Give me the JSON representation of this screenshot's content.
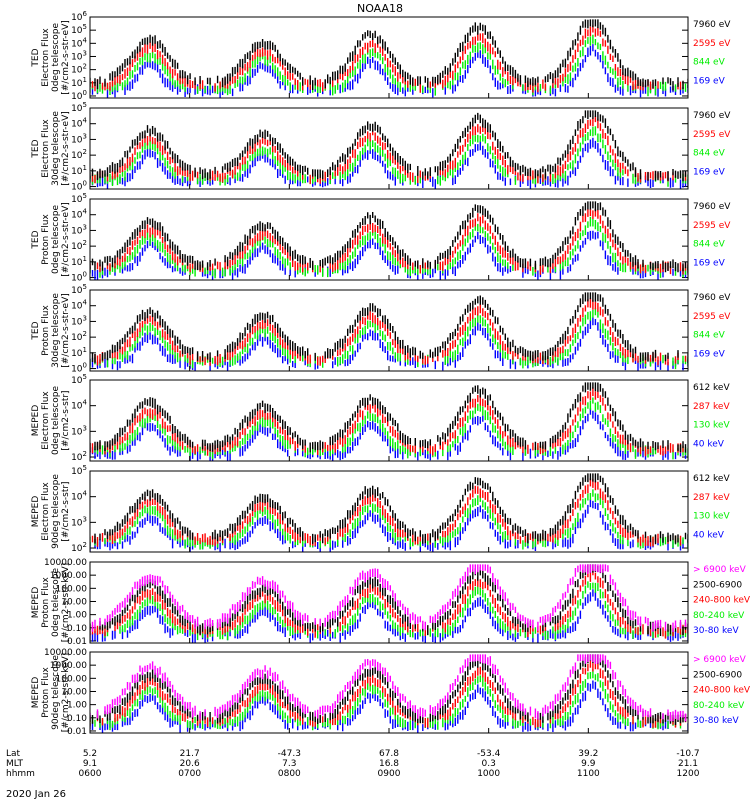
{
  "title": "NOAA18",
  "date": "2020 Jan 26",
  "colors": {
    "blue": "#0000ff",
    "red": "#ff0000",
    "green": "#00ee00",
    "black": "#000000",
    "magenta": "#ff00ff"
  },
  "x_axis": {
    "row_labels": [
      "Lat",
      "MLT",
      "hhmm"
    ],
    "ticks": [
      {
        "lat": "5.2",
        "mlt": "9.1",
        "hhmm": "0600"
      },
      {
        "lat": "21.7",
        "mlt": "20.6",
        "hhmm": "0700"
      },
      {
        "lat": "-47.3",
        "mlt": "7.3",
        "hhmm": "0800"
      },
      {
        "lat": "67.8",
        "mlt": "16.8",
        "hhmm": "0900"
      },
      {
        "lat": "-53.4",
        "mlt": "0.3",
        "hhmm": "1000"
      },
      {
        "lat": "39.2",
        "mlt": "9.9",
        "hhmm": "1100"
      },
      {
        "lat": "-10.7",
        "mlt": "21.1",
        "hhmm": "1200"
      }
    ]
  },
  "chart_data": [
    {
      "type": "line",
      "ylabel": [
        "TED",
        "Electron Flux",
        "0deg telescope",
        "[#/cm2-s-str-eV]"
      ],
      "yscale": "log",
      "ytick_labels": [
        "10^0",
        "10^1",
        "10^2",
        "10^3",
        "10^4",
        "10^5",
        "10^6"
      ],
      "ylim": [
        0.7,
        1000000
      ],
      "series": [
        {
          "name": "7960 eV",
          "color": "#000000"
        },
        {
          "name": "2595 eV",
          "color": "#ff0000"
        },
        {
          "name": "844 eV",
          "color": "#00ee00"
        },
        {
          "name": "169 eV",
          "color": "#0000ff"
        }
      ]
    },
    {
      "type": "line",
      "ylabel": [
        "TED",
        "Electron Flux",
        "30deg telescope",
        "[#/cm2-s-str-eV]"
      ],
      "yscale": "log",
      "ytick_labels": [
        "10^0",
        "10^1",
        "10^2",
        "10^3",
        "10^4",
        "10^5"
      ],
      "ylim": [
        0.7,
        100000
      ],
      "series": [
        {
          "name": "7960 eV",
          "color": "#000000"
        },
        {
          "name": "2595 eV",
          "color": "#ff0000"
        },
        {
          "name": "844 eV",
          "color": "#00ee00"
        },
        {
          "name": "169 eV",
          "color": "#0000ff"
        }
      ]
    },
    {
      "type": "line",
      "ylabel": [
        "TED",
        "Proton Flux",
        "0deg telescope",
        "[#/cm2-s-str-eV]"
      ],
      "yscale": "log",
      "ytick_labels": [
        "10^0",
        "10^1",
        "10^2",
        "10^3",
        "10^4",
        "10^5"
      ],
      "ylim": [
        0.7,
        100000
      ],
      "series": [
        {
          "name": "7960 eV",
          "color": "#000000"
        },
        {
          "name": "2595 eV",
          "color": "#ff0000"
        },
        {
          "name": "844 eV",
          "color": "#00ee00"
        },
        {
          "name": "169 eV",
          "color": "#0000ff"
        }
      ]
    },
    {
      "type": "line",
      "ylabel": [
        "TED",
        "Proton Flux",
        "30deg telescope",
        "[#/cm2-s-str-eV]"
      ],
      "yscale": "log",
      "ytick_labels": [
        "10^0",
        "10^1",
        "10^2",
        "10^3",
        "10^4",
        "10^5"
      ],
      "ylim": [
        0.7,
        100000
      ],
      "series": [
        {
          "name": "7960 eV",
          "color": "#000000"
        },
        {
          "name": "2595 eV",
          "color": "#ff0000"
        },
        {
          "name": "844 eV",
          "color": "#00ee00"
        },
        {
          "name": "169 eV",
          "color": "#0000ff"
        }
      ]
    },
    {
      "type": "line",
      "ylabel": [
        "MEPED",
        "Electron Flux",
        "0deg telescope",
        "[#/cm2-s-str]"
      ],
      "yscale": "log",
      "ytick_labels": [
        "10^2",
        "10^3",
        "10^4",
        "10^5"
      ],
      "ylim": [
        70,
        100000
      ],
      "series": [
        {
          "name": "612 keV",
          "color": "#000000"
        },
        {
          "name": "287 keV",
          "color": "#ff0000"
        },
        {
          "name": "130 keV",
          "color": "#00ee00"
        },
        {
          "name": "40 keV",
          "color": "#0000ff"
        }
      ]
    },
    {
      "type": "line",
      "ylabel": [
        "MEPED",
        "Electron Flux",
        "90deg telescope",
        "[#/cm2-s-str]"
      ],
      "yscale": "log",
      "ytick_labels": [
        "10^2",
        "10^3",
        "10^4",
        "10^5"
      ],
      "ylim": [
        70,
        100000
      ],
      "series": [
        {
          "name": "612 keV",
          "color": "#000000"
        },
        {
          "name": "287 keV",
          "color": "#ff0000"
        },
        {
          "name": "130 keV",
          "color": "#00ee00"
        },
        {
          "name": "40 keV",
          "color": "#0000ff"
        }
      ]
    },
    {
      "type": "line",
      "ylabel": [
        "MEPED",
        "Proton Flux",
        "0deg telescope",
        "[#/cm2-s-str-keV]"
      ],
      "yscale": "log",
      "ytick_labels": [
        "0.01",
        "0.10",
        "1.00",
        "10.00",
        "100.00",
        "1000.00",
        "10000.00"
      ],
      "ylim": [
        0.007,
        10000
      ],
      "series": [
        {
          "name": "> 6900 keV",
          "color": "#ff00ff"
        },
        {
          "name": "2500-6900",
          "color": "#000000"
        },
        {
          "name": "240-800 keV",
          "color": "#ff0000"
        },
        {
          "name": "80-240 keV",
          "color": "#00ee00"
        },
        {
          "name": "30-80 keV",
          "color": "#0000ff"
        }
      ]
    },
    {
      "type": "line",
      "ylabel": [
        "MEPED",
        "Proton Flux",
        "90deg telescope",
        "[#/cm2-s-str-keV]"
      ],
      "yscale": "log",
      "ytick_labels": [
        "0.01",
        "0.10",
        "1.00",
        "10.00",
        "100.00",
        "1000.00",
        "10000.00"
      ],
      "ylim": [
        0.007,
        10000
      ],
      "series": [
        {
          "name": "> 6900 keV",
          "color": "#ff00ff"
        },
        {
          "name": "2500-6900",
          "color": "#000000"
        },
        {
          "name": "240-800 keV",
          "color": "#ff0000"
        },
        {
          "name": "80-240 keV",
          "color": "#00ee00"
        },
        {
          "name": "30-80 keV",
          "color": "#0000ff"
        }
      ]
    }
  ]
}
